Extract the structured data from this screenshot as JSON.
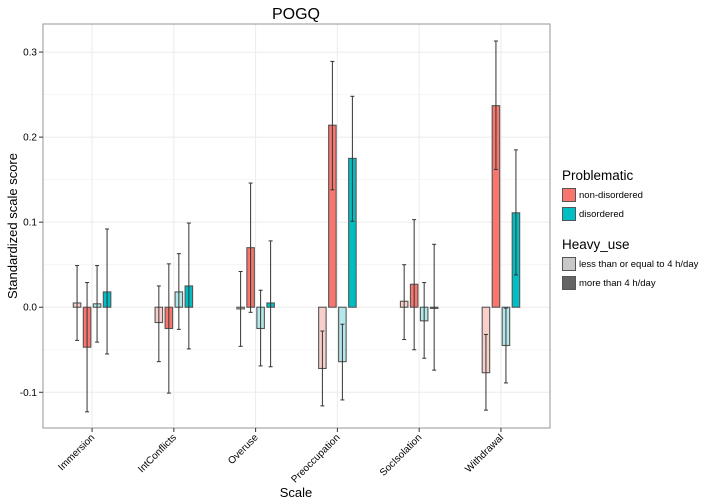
{
  "chart_data": {
    "type": "bar",
    "title": "POGQ",
    "xlabel": "Scale",
    "ylabel": "Standardized scale score",
    "ylim": [
      -0.142,
      0.333
    ],
    "yticks": [
      -0.1,
      0.0,
      0.1,
      0.2,
      0.3
    ],
    "ytick_labels": [
      "-0.1",
      "0.0",
      "0.1",
      "0.2",
      "0.3"
    ],
    "grid": true,
    "legend_position": "right",
    "categories": [
      "Immersion",
      "IntConflicts",
      "Overuse",
      "Preoccupation",
      "SocIsolation",
      "Withdrawal"
    ],
    "series": [
      {
        "name": "non-disordered / less than or equal to 4 h/day",
        "problematic": "non-disordered",
        "heavy_use": "less than or equal to 4 h/day",
        "color": "#F9CFCB",
        "values": [
          0.005,
          -0.018,
          -0.002,
          -0.072,
          0.007,
          -0.077
        ],
        "err_upper": [
          0.049,
          0.025,
          0.042,
          -0.028,
          0.05,
          -0.032
        ],
        "err_lower": [
          -0.039,
          -0.064,
          -0.046,
          -0.116,
          -0.038,
          -0.121
        ]
      },
      {
        "name": "non-disordered / more than 4 h/day",
        "problematic": "non-disordered",
        "heavy_use": "more than 4 h/day",
        "color": "#F8766D",
        "values": [
          -0.047,
          -0.025,
          0.07,
          0.214,
          0.027,
          0.237
        ],
        "err_upper": [
          0.029,
          0.051,
          0.146,
          0.289,
          0.103,
          0.313
        ],
        "err_lower": [
          -0.123,
          -0.101,
          -0.006,
          0.138,
          -0.05,
          0.162
        ]
      },
      {
        "name": "disordered / less than or equal to 4 h/day",
        "problematic": "disordered",
        "heavy_use": "less than or equal to 4 h/day",
        "color": "#B4E8EA",
        "values": [
          0.004,
          0.018,
          -0.025,
          -0.064,
          -0.016,
          -0.045
        ],
        "err_upper": [
          0.049,
          0.063,
          0.02,
          -0.02,
          0.029,
          -0.001
        ],
        "err_lower": [
          -0.041,
          -0.026,
          -0.069,
          -0.109,
          -0.06,
          -0.089
        ]
      },
      {
        "name": "disordered / more than 4 h/day",
        "problematic": "disordered",
        "heavy_use": "more than 4 h/day",
        "color": "#00BFC4",
        "values": [
          0.018,
          0.025,
          0.005,
          0.175,
          0.0,
          0.111
        ],
        "err_upper": [
          0.092,
          0.099,
          0.078,
          0.248,
          0.074,
          0.185
        ],
        "err_lower": [
          -0.055,
          -0.049,
          -0.07,
          0.101,
          -0.074,
          0.038
        ]
      }
    ]
  },
  "legend": {
    "problematic": {
      "title": "Problematic",
      "items": [
        {
          "label": "non-disordered",
          "color": "#F8766D"
        },
        {
          "label": "disordered",
          "color": "#00BFC4"
        }
      ]
    },
    "heavy_use": {
      "title": "Heavy_use",
      "items": [
        {
          "label": "less than or equal to 4 h/day",
          "color": "#C8C8C8"
        },
        {
          "label": "more than 4 h/day",
          "color": "#646464"
        }
      ]
    }
  }
}
